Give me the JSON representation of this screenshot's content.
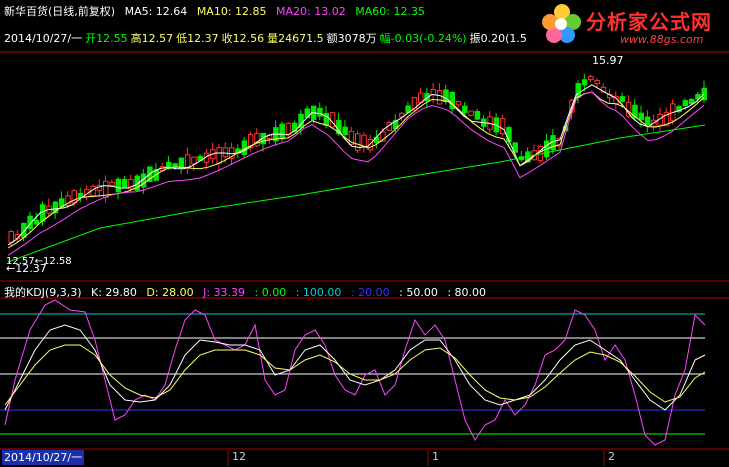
{
  "header": {
    "stock_name": "新华百货(日线,前复权)",
    "ma5": "MA5: 12.64",
    "ma10": "MA10: 12.85",
    "ma20": "MA20: 13.02",
    "ma60": "MA60: 12.35"
  },
  "quote": {
    "date": "2014/10/27/一",
    "open": "开12.55",
    "high": "高12.57",
    "low": "低12.37",
    "close": "收12.56",
    "volume": "量24671.5",
    "amount": "额3078万",
    "change": "幅-0.03(-0.24%)",
    "amplitude": "振0.20(1.5"
  },
  "price_labels": {
    "high_mark": "15.97",
    "low_mark": "←12.37",
    "low_range": "12.57←12.58"
  },
  "kdj": {
    "name": "我的KDJ(9,3,3)",
    "k": "K: 29.80",
    "d": "D: 28.00",
    "j": "J: 33.39",
    "l0": ": 0.00",
    "l100": ": 100.00",
    "l20": ": 20.00",
    "l50": ": 50.00",
    "l80": ": 80.00"
  },
  "axis": {
    "cursor_date": "2014/10/27/一",
    "m12": "12",
    "m1": "1",
    "m2": "2"
  },
  "logo": {
    "text": "分析家公式网",
    "url": "www.88gs.com"
  },
  "colors": {
    "up": "#ff3030",
    "down": "#00e600",
    "ma5": "#ffffff",
    "ma10": "#ffff66",
    "ma20": "#ff44ff",
    "ma60": "#00ff00",
    "k": "#ffffff",
    "d": "#ffff66",
    "j": "#ff44ff"
  }
}
